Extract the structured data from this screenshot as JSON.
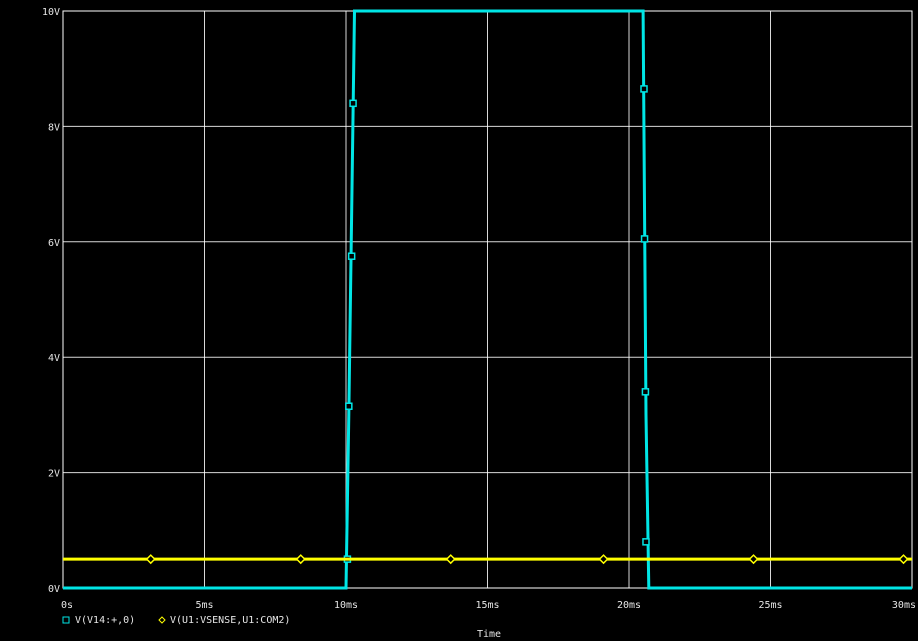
{
  "chart_data": {
    "type": "line",
    "xlabel": "Time",
    "ylabel": "",
    "xlim": [
      0,
      30
    ],
    "ylim": [
      0,
      10
    ],
    "x_ticks": [
      {
        "value": 0,
        "label": "0s"
      },
      {
        "value": 5,
        "label": "5ms"
      },
      {
        "value": 10,
        "label": "10ms"
      },
      {
        "value": 15,
        "label": "15ms"
      },
      {
        "value": 20,
        "label": "20ms"
      },
      {
        "value": 25,
        "label": "25ms"
      },
      {
        "value": 30,
        "label": "30ms"
      }
    ],
    "y_ticks": [
      {
        "value": 0,
        "label": "0V"
      },
      {
        "value": 2,
        "label": "2V"
      },
      {
        "value": 4,
        "label": "4V"
      },
      {
        "value": 6,
        "label": "6V"
      },
      {
        "value": 8,
        "label": "8V"
      },
      {
        "value": 10,
        "label": "10V"
      }
    ],
    "grid": true,
    "legend_position": "bottom-left",
    "series": [
      {
        "name": "V(V14:+,0)",
        "color": "#00e6e6",
        "marker": "square",
        "x": [
          0,
          10.0,
          10.1,
          10.3,
          20.5,
          20.6,
          20.7,
          30
        ],
        "y": [
          0,
          0,
          3.0,
          10,
          10,
          3.0,
          0,
          0
        ],
        "markers_x": [
          10.05,
          10.1,
          10.2,
          10.25,
          20.53,
          20.55,
          20.58,
          20.6
        ],
        "markers_y": [
          0.5,
          3.15,
          5.75,
          8.4,
          8.65,
          6.05,
          3.4,
          0.8
        ]
      },
      {
        "name": "V(U1:VSENSE,U1:COM2)",
        "color": "#ffff00",
        "marker": "diamond",
        "x": [
          0,
          30
        ],
        "y": [
          0.5,
          0.5
        ],
        "markers_x": [
          3.1,
          8.4,
          13.7,
          19.1,
          24.4,
          29.7
        ],
        "markers_y": [
          0.5,
          0.5,
          0.5,
          0.5,
          0.5,
          0.5
        ]
      }
    ]
  }
}
